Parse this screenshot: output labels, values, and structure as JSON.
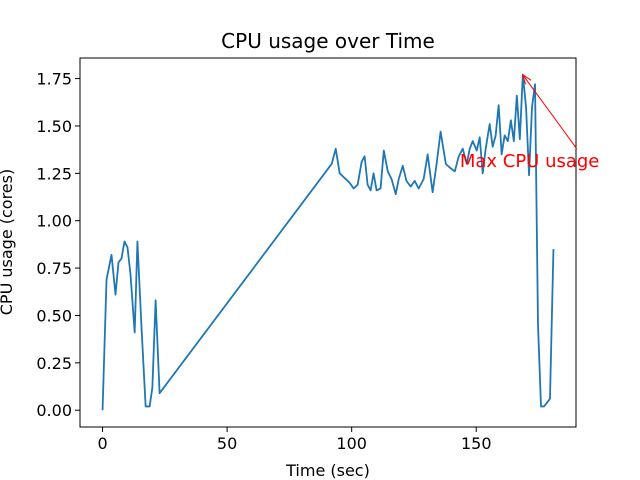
{
  "chart_data": {
    "type": "line",
    "title": "CPU usage over Time",
    "xlabel": "Time (sec)",
    "ylabel": "CPU usage (cores)",
    "x": [
      0,
      1.6,
      3.6,
      5.2,
      6.4,
      7.6,
      8.8,
      10,
      11.2,
      12.9,
      14,
      15.7,
      17.3,
      18.9,
      20,
      21.3,
      22.9,
      92,
      93.6,
      95.2,
      97.6,
      99.2,
      100.8,
      102.4,
      104,
      105.2,
      106.4,
      107.6,
      108.8,
      110,
      111.6,
      112.9,
      114.5,
      116,
      117.7,
      118.9,
      120.5,
      122,
      123.7,
      125.3,
      126.9,
      128.9,
      130.5,
      132.5,
      134.1,
      135.7,
      137.8,
      139.4,
      141.4,
      143,
      144.6,
      146.2,
      147.4,
      148.6,
      150.2,
      151.4,
      152.6,
      153.8,
      155.4,
      156.6,
      157.8,
      159,
      160.2,
      161.4,
      162.7,
      163.9,
      165.1,
      166.3,
      167.5,
      168.7,
      170,
      171.2,
      172.4,
      173.6,
      174.8,
      176,
      177.2,
      178.4,
      179.6,
      181
    ],
    "series": [
      {
        "color": "#1f77b4",
        "values": [
          0,
          0.69,
          0.82,
          0.61,
          0.78,
          0.8,
          0.89,
          0.86,
          0.72,
          0.41,
          0.89,
          0.42,
          0.02,
          0.02,
          0.12,
          0.58,
          0.09,
          1.3,
          1.38,
          1.25,
          1.22,
          1.2,
          1.17,
          1.19,
          1.31,
          1.34,
          1.19,
          1.16,
          1.25,
          1.16,
          1.17,
          1.37,
          1.26,
          1.22,
          1.14,
          1.22,
          1.29,
          1.21,
          1.18,
          1.21,
          1.17,
          1.22,
          1.35,
          1.15,
          1.3,
          1.47,
          1.3,
          1.28,
          1.26,
          1.34,
          1.38,
          1.3,
          1.38,
          1.42,
          1.37,
          1.44,
          1.25,
          1.38,
          1.51,
          1.39,
          1.45,
          1.61,
          1.35,
          1.45,
          1.42,
          1.53,
          1.42,
          1.66,
          1.43,
          1.77,
          1.6,
          1.24,
          1.6,
          1.72,
          0.45,
          0.02,
          0.02,
          0.04,
          0.06,
          0.85
        ]
      }
    ],
    "xlim": [
      -9.05,
      190.05
    ],
    "ylim": [
      -0.0885,
      1.8585
    ],
    "xticks": [
      0,
      50,
      100,
      150
    ],
    "yticks": [
      {
        "value": 0,
        "label": "0.00"
      },
      {
        "value": 0.25,
        "label": "0.25"
      },
      {
        "value": 0.5,
        "label": "0.50"
      },
      {
        "value": 0.75,
        "label": "0.75"
      },
      {
        "value": 1,
        "label": "1.00"
      },
      {
        "value": 1.25,
        "label": "1.25"
      },
      {
        "value": 1.5,
        "label": "1.50"
      },
      {
        "value": 1.75,
        "label": "1.75"
      }
    ],
    "annotation": {
      "text": "Max CPU usage",
      "color": "red"
    }
  }
}
